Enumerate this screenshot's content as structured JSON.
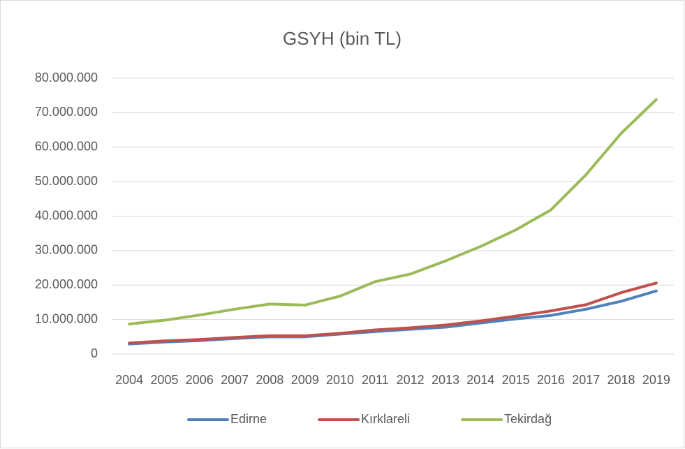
{
  "chart_data": {
    "type": "line",
    "title": "GSYH (bin TL)",
    "categories": [
      "2004",
      "2005",
      "2006",
      "2007",
      "2008",
      "2009",
      "2010",
      "2011",
      "2012",
      "2013",
      "2014",
      "2015",
      "2016",
      "2017",
      "2018",
      "2019"
    ],
    "series": [
      {
        "name": "Edirne",
        "color": "#4f81bd",
        "values": [
          2900000,
          3500000,
          3900000,
          4500000,
          5000000,
          5000000,
          5800000,
          6500000,
          7200000,
          7800000,
          9000000,
          10200000,
          11200000,
          13000000,
          15300000,
          18300000
        ]
      },
      {
        "name": "Kırklareli",
        "color": "#c0504d",
        "values": [
          3200000,
          3800000,
          4200000,
          4800000,
          5300000,
          5300000,
          6000000,
          7000000,
          7600000,
          8400000,
          9600000,
          11000000,
          12500000,
          14300000,
          17800000,
          20600000
        ]
      },
      {
        "name": "Tekirdağ",
        "color": "#9bbb59",
        "values": [
          8700000,
          9800000,
          11300000,
          13000000,
          14500000,
          14200000,
          16800000,
          21000000,
          23200000,
          27000000,
          31200000,
          36000000,
          41800000,
          52000000,
          64000000,
          73800000
        ]
      }
    ],
    "ylim": [
      0,
      80000000
    ],
    "yticks": [
      0,
      {
        "value": 10000000,
        "label": "10.000.000"
      },
      {
        "value": 20000000,
        "label": "20.000.000"
      },
      {
        "value": 30000000,
        "label": "30.000.000"
      },
      {
        "value": 40000000,
        "label": "40.000.000"
      },
      {
        "value": 50000000,
        "label": "50.000.000"
      },
      {
        "value": 60000000,
        "label": "60.000.000"
      },
      {
        "value": 70000000,
        "label": "70.000.000"
      },
      {
        "value": 80000000,
        "label": "80.000.000"
      }
    ],
    "grid": true,
    "legend": "bottom"
  }
}
